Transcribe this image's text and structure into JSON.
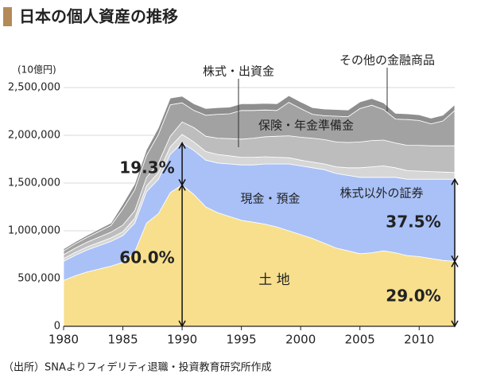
{
  "chart_data": {
    "type": "stacked_area",
    "title": "日本の個人資産の推移",
    "y_unit_label": "(10億円)",
    "source": "（出所）SNAよりフィデリティ退職・投資教育研究所作成",
    "x": [
      1980,
      1981,
      1982,
      1983,
      1984,
      1985,
      1986,
      1987,
      1988,
      1989,
      1990,
      1991,
      1992,
      1993,
      1994,
      1995,
      1996,
      1997,
      1998,
      1999,
      2000,
      2001,
      2002,
      2003,
      2004,
      2005,
      2006,
      2007,
      2008,
      2009,
      2010,
      2011,
      2012,
      2013
    ],
    "xlim": [
      1980,
      2013
    ],
    "xticks": [
      1980,
      1985,
      1990,
      1995,
      2000,
      2005,
      2010
    ],
    "ylim": [
      0,
      2500000
    ],
    "yticks": [
      0,
      {
        "value": 500000,
        "label": "500,000"
      },
      {
        "value": 1000000,
        "label": "1,000,000"
      },
      {
        "value": 1500000,
        "label": "1,500,000"
      },
      {
        "value": 2000000,
        "label": "2,000,000"
      },
      {
        "value": 2500000,
        "label": "2,500,000"
      }
    ],
    "grid": true,
    "series": [
      {
        "name": "土 地",
        "color": "#f7df8d",
        "values": [
          480000,
          530000,
          570000,
          600000,
          630000,
          670000,
          780000,
          1080000,
          1180000,
          1400000,
          1480000,
          1380000,
          1250000,
          1190000,
          1150000,
          1110000,
          1090000,
          1070000,
          1040000,
          1000000,
          960000,
          920000,
          870000,
          820000,
          790000,
          760000,
          770000,
          790000,
          770000,
          740000,
          730000,
          710000,
          690000,
          680000
        ]
      },
      {
        "name": "現金・預金",
        "color": "#a9c1f7",
        "values": [
          200000,
          215000,
          230000,
          245000,
          260000,
          280000,
          300000,
          330000,
          360000,
          400000,
          440000,
          460000,
          490000,
          520000,
          550000,
          580000,
          600000,
          630000,
          660000,
          700000,
          720000,
          740000,
          770000,
          780000,
          790000,
          800000,
          790000,
          770000,
          790000,
          800000,
          810000,
          830000,
          850000,
          860000
        ]
      },
      {
        "name": "株式以外の証券",
        "color": "#d6d6d6",
        "values": [
          30000,
          30000,
          32000,
          34000,
          36000,
          40000,
          50000,
          60000,
          70000,
          80000,
          90000,
          90000,
          90000,
          90000,
          85000,
          80000,
          80000,
          75000,
          70000,
          65000,
          60000,
          60000,
          60000,
          70000,
          80000,
          100000,
          110000,
          120000,
          100000,
          90000,
          85000,
          80000,
          75000,
          70000
        ]
      },
      {
        "name": "保険・年金準備金",
        "color": "#bdbdbd",
        "values": [
          40000,
          45000,
          50000,
          55000,
          60000,
          70000,
          80000,
          90000,
          100000,
          110000,
          130000,
          150000,
          160000,
          170000,
          180000,
          190000,
          200000,
          210000,
          220000,
          230000,
          240000,
          250000,
          255000,
          260000,
          265000,
          270000,
          275000,
          270000,
          260000,
          265000,
          270000,
          270000,
          275000,
          280000
        ]
      },
      {
        "name": "株式・出資金",
        "color": "#a2a2a2",
        "values": [
          40000,
          45000,
          50000,
          60000,
          70000,
          170000,
          220000,
          230000,
          300000,
          330000,
          200000,
          180000,
          220000,
          250000,
          260000,
          300000,
          290000,
          280000,
          270000,
          350000,
          300000,
          250000,
          250000,
          270000,
          270000,
          350000,
          370000,
          320000,
          250000,
          270000,
          260000,
          230000,
          260000,
          370000
        ]
      },
      {
        "name": "その他の金融商品",
        "color": "#8e8e8e",
        "values": [
          20000,
          20000,
          22000,
          24000,
          26000,
          50000,
          60000,
          60000,
          70000,
          70000,
          70000,
          70000,
          70000,
          70000,
          70000,
          70000,
          70000,
          70000,
          70000,
          70000,
          70000,
          70000,
          70000,
          70000,
          70000,
          70000,
          70000,
          70000,
          60000,
          60000,
          60000,
          60000,
          60000,
          60000
        ]
      }
    ],
    "annotations": [
      "19.3%",
      "60.0%",
      "37.5%",
      "29.0%"
    ]
  }
}
